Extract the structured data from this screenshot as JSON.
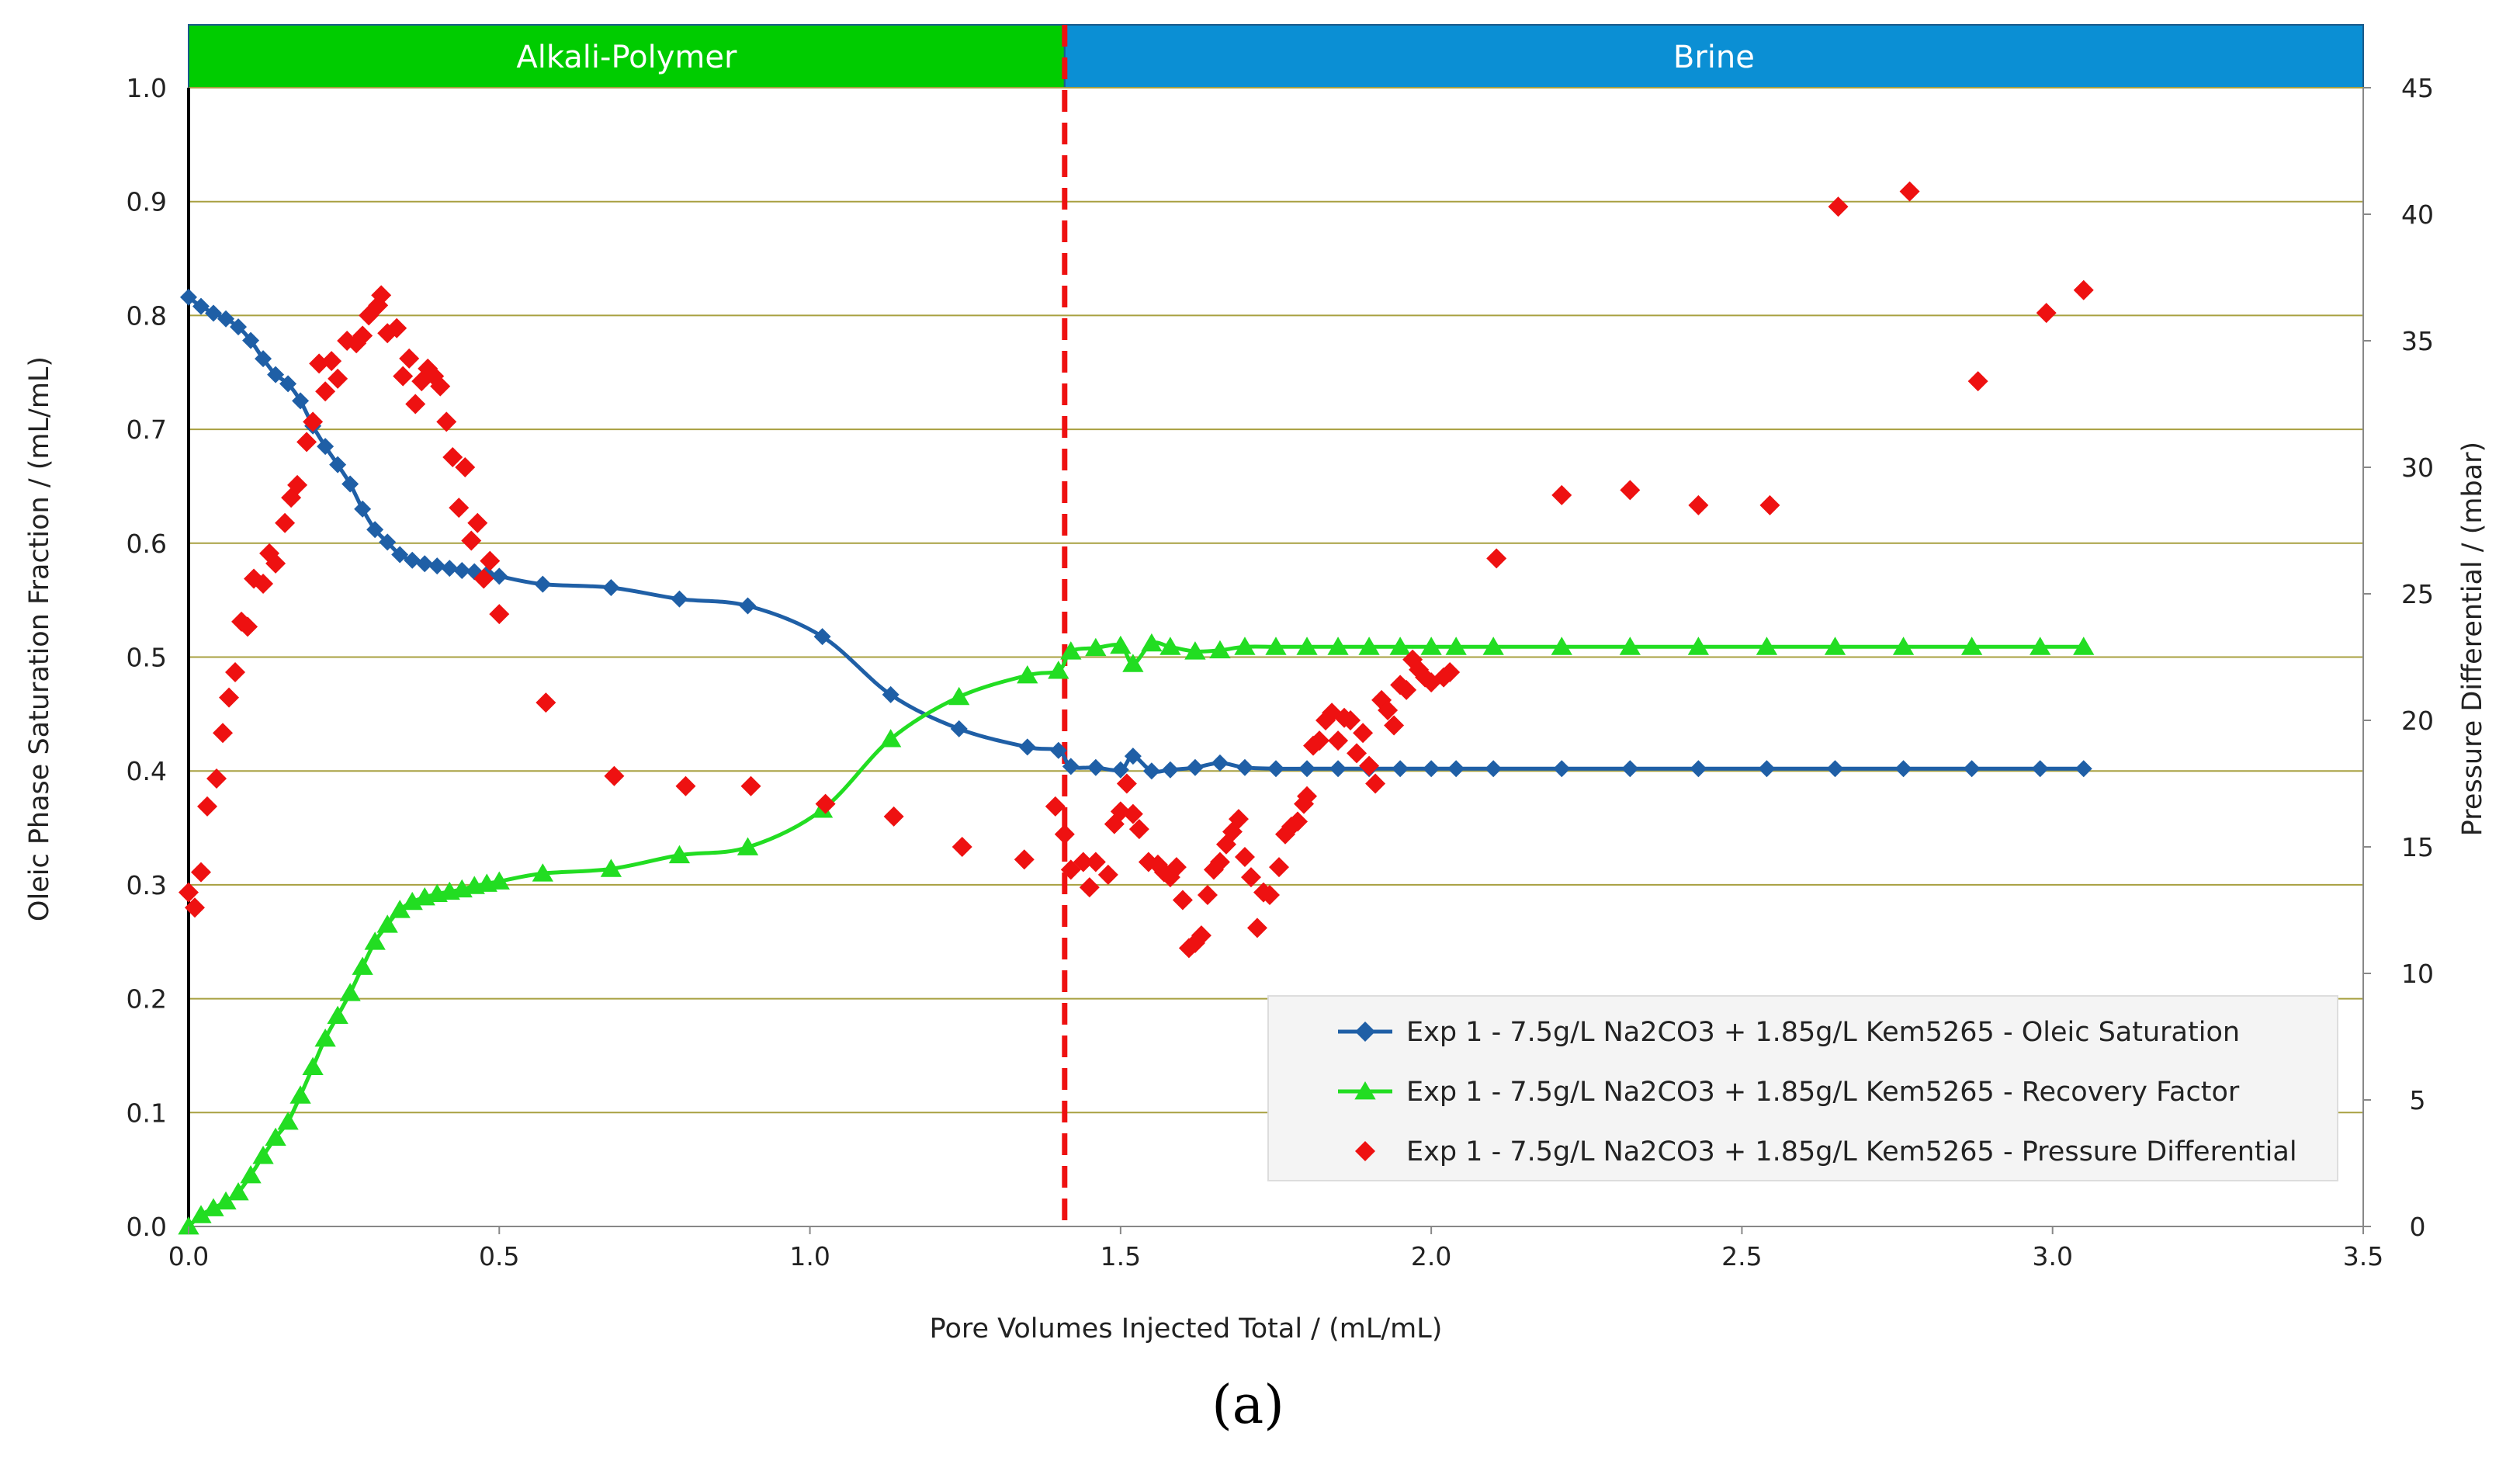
{
  "caption": "(a)",
  "chart_data": {
    "type": "scatter",
    "xlabel": "Pore Volumes Injected Total / (mL/mL)",
    "ylabel_left": "Oleic Phase Saturation Fraction / (mL/mL)",
    "ylabel_right": "Pressure Differential / (mbar)",
    "xlim": [
      0,
      3.5
    ],
    "ylim_left": [
      0,
      1.0
    ],
    "ylim_right": [
      0,
      45
    ],
    "x_ticks": [
      "0.0",
      "0.5",
      "1.0",
      "1.5",
      "2.0",
      "2.5",
      "3.0",
      "3.5"
    ],
    "y_left_ticks": [
      "0.0",
      "0.1",
      "0.2",
      "0.3",
      "0.4",
      "0.5",
      "0.6",
      "0.7",
      "0.8",
      "0.9",
      "1.0"
    ],
    "y_right_ticks": [
      "0",
      "5",
      "10",
      "15",
      "20",
      "25",
      "30",
      "35",
      "40",
      "45"
    ],
    "grid": "horizontal",
    "phases": [
      {
        "label": "Alkali-Polymer",
        "x_start": 0,
        "x_end": 1.41,
        "color": "#00cc00"
      },
      {
        "label": "Brine",
        "x_start": 1.41,
        "x_end": 3.5,
        "color": "#0b8fd4"
      }
    ],
    "phase_boundary_x": 1.41,
    "boundary_color": "#ee1111",
    "legend_position": "bottom-right",
    "series": [
      {
        "name": "Exp 1 - 7.5g/L Na2CO3 + 1.85g/L Kem5265 - Oleic Saturation",
        "axis": "left",
        "marker": "diamond",
        "color": "#1f5fa6",
        "line": true,
        "points": [
          [
            0,
            0.816
          ],
          [
            0.02,
            0.808
          ],
          [
            0.04,
            0.802
          ],
          [
            0.06,
            0.797
          ],
          [
            0.08,
            0.79
          ],
          [
            0.1,
            0.778
          ],
          [
            0.12,
            0.762
          ],
          [
            0.14,
            0.748
          ],
          [
            0.16,
            0.74
          ],
          [
            0.18,
            0.725
          ],
          [
            0.2,
            0.703
          ],
          [
            0.22,
            0.685
          ],
          [
            0.24,
            0.669
          ],
          [
            0.26,
            0.652
          ],
          [
            0.28,
            0.63
          ],
          [
            0.3,
            0.612
          ],
          [
            0.32,
            0.601
          ],
          [
            0.34,
            0.59
          ],
          [
            0.36,
            0.585
          ],
          [
            0.38,
            0.582
          ],
          [
            0.4,
            0.58
          ],
          [
            0.42,
            0.578
          ],
          [
            0.44,
            0.576
          ],
          [
            0.46,
            0.575
          ],
          [
            0.48,
            0.573
          ],
          [
            0.5,
            0.571
          ],
          [
            0.57,
            0.564
          ],
          [
            0.68,
            0.561
          ],
          [
            0.79,
            0.551
          ],
          [
            0.9,
            0.545
          ],
          [
            1.02,
            0.518
          ],
          [
            1.13,
            0.467
          ],
          [
            1.24,
            0.437
          ],
          [
            1.35,
            0.421
          ],
          [
            1.4,
            0.418
          ],
          [
            1.42,
            0.404
          ],
          [
            1.46,
            0.403
          ],
          [
            1.5,
            0.401
          ],
          [
            1.52,
            0.413
          ],
          [
            1.55,
            0.4
          ],
          [
            1.58,
            0.401
          ],
          [
            1.62,
            0.403
          ],
          [
            1.66,
            0.407
          ],
          [
            1.7,
            0.403
          ],
          [
            1.75,
            0.402
          ],
          [
            1.8,
            0.402
          ],
          [
            1.85,
            0.402
          ],
          [
            1.9,
            0.402
          ],
          [
            1.95,
            0.402
          ],
          [
            2.0,
            0.402
          ],
          [
            2.04,
            0.402
          ],
          [
            2.1,
            0.402
          ],
          [
            2.21,
            0.402
          ],
          [
            2.32,
            0.402
          ],
          [
            2.43,
            0.402
          ],
          [
            2.54,
            0.402
          ],
          [
            2.65,
            0.402
          ],
          [
            2.76,
            0.402
          ],
          [
            2.87,
            0.402
          ],
          [
            2.98,
            0.402
          ],
          [
            3.05,
            0.402
          ]
        ]
      },
      {
        "name": "Exp 1 - 7.5g/L Na2CO3 + 1.85g/L Kem5265 - Recovery Factor",
        "axis": "left",
        "marker": "triangle",
        "color": "#22dd22",
        "line": true,
        "points": [
          [
            0,
            0.0
          ],
          [
            0.02,
            0.01
          ],
          [
            0.04,
            0.016
          ],
          [
            0.06,
            0.022
          ],
          [
            0.08,
            0.03
          ],
          [
            0.1,
            0.045
          ],
          [
            0.12,
            0.062
          ],
          [
            0.14,
            0.078
          ],
          [
            0.16,
            0.092
          ],
          [
            0.18,
            0.115
          ],
          [
            0.2,
            0.14
          ],
          [
            0.22,
            0.165
          ],
          [
            0.24,
            0.185
          ],
          [
            0.26,
            0.205
          ],
          [
            0.28,
            0.228
          ],
          [
            0.3,
            0.25
          ],
          [
            0.32,
            0.265
          ],
          [
            0.34,
            0.278
          ],
          [
            0.36,
            0.285
          ],
          [
            0.38,
            0.289
          ],
          [
            0.4,
            0.292
          ],
          [
            0.42,
            0.294
          ],
          [
            0.44,
            0.296
          ],
          [
            0.46,
            0.299
          ],
          [
            0.48,
            0.301
          ],
          [
            0.5,
            0.303
          ],
          [
            0.57,
            0.31
          ],
          [
            0.68,
            0.314
          ],
          [
            0.79,
            0.326
          ],
          [
            0.9,
            0.333
          ],
          [
            1.02,
            0.366
          ],
          [
            1.13,
            0.428
          ],
          [
            1.24,
            0.465
          ],
          [
            1.35,
            0.484
          ],
          [
            1.4,
            0.488
          ],
          [
            1.42,
            0.505
          ],
          [
            1.46,
            0.508
          ],
          [
            1.5,
            0.51
          ],
          [
            1.52,
            0.494
          ],
          [
            1.55,
            0.512
          ],
          [
            1.58,
            0.509
          ],
          [
            1.62,
            0.505
          ],
          [
            1.66,
            0.506
          ],
          [
            1.7,
            0.509
          ],
          [
            1.75,
            0.509
          ],
          [
            1.8,
            0.509
          ],
          [
            1.85,
            0.509
          ],
          [
            1.9,
            0.509
          ],
          [
            1.95,
            0.509
          ],
          [
            2.0,
            0.509
          ],
          [
            2.04,
            0.509
          ],
          [
            2.1,
            0.509
          ],
          [
            2.21,
            0.509
          ],
          [
            2.32,
            0.509
          ],
          [
            2.43,
            0.509
          ],
          [
            2.54,
            0.509
          ],
          [
            2.65,
            0.509
          ],
          [
            2.76,
            0.509
          ],
          [
            2.87,
            0.509
          ],
          [
            2.98,
            0.509
          ],
          [
            3.05,
            0.509
          ]
        ]
      },
      {
        "name": "Exp 1 - 7.5g/L Na2CO3 + 1.85g/L Kem5265 - Pressure Differential",
        "axis": "right",
        "marker": "diamond",
        "color": "#ee1111",
        "line": false,
        "points": [
          [
            0.0,
            13.2
          ],
          [
            0.01,
            12.6
          ],
          [
            0.02,
            14.0
          ],
          [
            0.03,
            16.6
          ],
          [
            0.045,
            17.7
          ],
          [
            0.055,
            19.5
          ],
          [
            0.065,
            20.9
          ],
          [
            0.075,
            21.9
          ],
          [
            0.085,
            23.9
          ],
          [
            0.095,
            23.7
          ],
          [
            0.105,
            25.6
          ],
          [
            0.12,
            25.4
          ],
          [
            0.13,
            26.6
          ],
          [
            0.14,
            26.2
          ],
          [
            0.155,
            27.8
          ],
          [
            0.165,
            28.8
          ],
          [
            0.175,
            29.3
          ],
          [
            0.19,
            31.0
          ],
          [
            0.2,
            31.8
          ],
          [
            0.21,
            34.1
          ],
          [
            0.22,
            33.0
          ],
          [
            0.23,
            34.2
          ],
          [
            0.24,
            33.5
          ],
          [
            0.255,
            35.0
          ],
          [
            0.27,
            34.9
          ],
          [
            0.28,
            35.2
          ],
          [
            0.29,
            36.0
          ],
          [
            0.305,
            36.4
          ],
          [
            0.31,
            36.8
          ],
          [
            0.32,
            35.3
          ],
          [
            0.335,
            35.5
          ],
          [
            0.345,
            33.6
          ],
          [
            0.355,
            34.3
          ],
          [
            0.365,
            32.5
          ],
          [
            0.375,
            33.4
          ],
          [
            0.385,
            33.9
          ],
          [
            0.395,
            33.6
          ],
          [
            0.405,
            33.2
          ],
          [
            0.415,
            31.8
          ],
          [
            0.425,
            30.4
          ],
          [
            0.435,
            28.4
          ],
          [
            0.445,
            30.0
          ],
          [
            0.455,
            27.1
          ],
          [
            0.465,
            27.8
          ],
          [
            0.475,
            25.6
          ],
          [
            0.485,
            26.3
          ],
          [
            0.5,
            24.2
          ],
          [
            0.575,
            20.7
          ],
          [
            0.685,
            17.8
          ],
          [
            0.8,
            17.4
          ],
          [
            0.905,
            17.4
          ],
          [
            1.025,
            16.7
          ],
          [
            1.135,
            16.2
          ],
          [
            1.245,
            15.0
          ],
          [
            1.345,
            14.5
          ],
          [
            1.395,
            16.6
          ],
          [
            1.41,
            15.5
          ],
          [
            1.42,
            14.1
          ],
          [
            1.44,
            14.4
          ],
          [
            1.45,
            13.4
          ],
          [
            1.46,
            14.4
          ],
          [
            1.48,
            13.9
          ],
          [
            1.49,
            15.9
          ],
          [
            1.5,
            16.4
          ],
          [
            1.51,
            17.5
          ],
          [
            1.52,
            16.3
          ],
          [
            1.53,
            15.7
          ],
          [
            1.545,
            14.4
          ],
          [
            1.56,
            14.3
          ],
          [
            1.57,
            14.0
          ],
          [
            1.58,
            13.8
          ],
          [
            1.59,
            14.2
          ],
          [
            1.6,
            12.9
          ],
          [
            1.61,
            11.0
          ],
          [
            1.62,
            11.2
          ],
          [
            1.63,
            11.5
          ],
          [
            1.64,
            13.1
          ],
          [
            1.65,
            14.1
          ],
          [
            1.66,
            14.4
          ],
          [
            1.67,
            15.1
          ],
          [
            1.68,
            15.6
          ],
          [
            1.69,
            16.1
          ],
          [
            1.7,
            14.6
          ],
          [
            1.71,
            13.8
          ],
          [
            1.72,
            11.8
          ],
          [
            1.73,
            13.2
          ],
          [
            1.74,
            13.1
          ],
          [
            1.755,
            14.2
          ],
          [
            1.765,
            15.5
          ],
          [
            1.775,
            15.8
          ],
          [
            1.785,
            16.0
          ],
          [
            1.795,
            16.7
          ],
          [
            1.8,
            17.0
          ],
          [
            1.81,
            19.0
          ],
          [
            1.82,
            19.2
          ],
          [
            1.83,
            20.0
          ],
          [
            1.84,
            20.3
          ],
          [
            1.85,
            19.2
          ],
          [
            1.86,
            20.1
          ],
          [
            1.87,
            20.0
          ],
          [
            1.88,
            18.7
          ],
          [
            1.89,
            19.5
          ],
          [
            1.9,
            18.2
          ],
          [
            1.91,
            17.5
          ],
          [
            1.92,
            20.8
          ],
          [
            1.93,
            20.4
          ],
          [
            1.94,
            19.8
          ],
          [
            1.95,
            21.4
          ],
          [
            1.96,
            21.2
          ],
          [
            1.97,
            22.4
          ],
          [
            1.98,
            22.0
          ],
          [
            1.99,
            21.7
          ],
          [
            2.0,
            21.5
          ],
          [
            2.02,
            21.7
          ],
          [
            2.03,
            21.9
          ],
          [
            2.105,
            26.4
          ],
          [
            2.21,
            28.9
          ],
          [
            2.32,
            29.1
          ],
          [
            2.43,
            28.5
          ],
          [
            2.545,
            28.5
          ],
          [
            2.655,
            40.3
          ],
          [
            2.77,
            40.9
          ],
          [
            2.88,
            33.4
          ],
          [
            2.99,
            36.1
          ],
          [
            3.05,
            37.0
          ]
        ]
      }
    ]
  }
}
